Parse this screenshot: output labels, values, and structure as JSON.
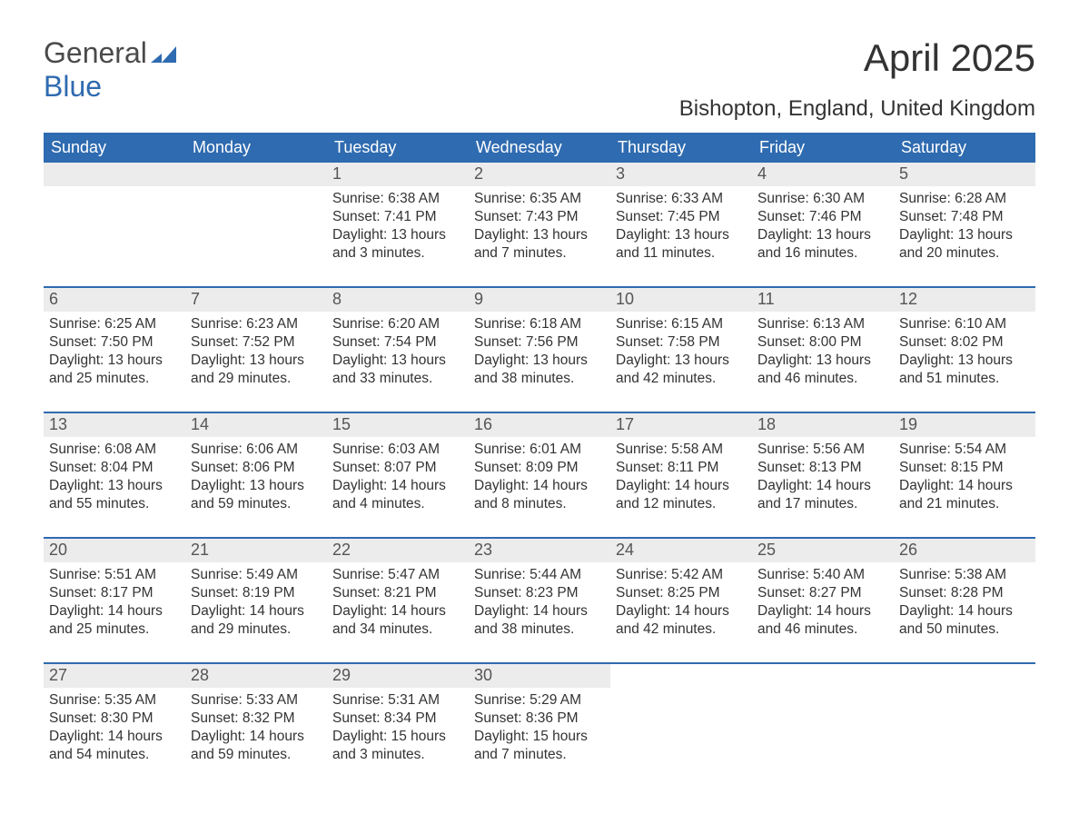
{
  "logo": {
    "text1": "General",
    "text2": "Blue",
    "mark_color": "#2f6bb0"
  },
  "title": "April 2025",
  "location": "Bishopton, England, United Kingdom",
  "colors": {
    "header_bg": "#2f6bb0",
    "header_fg": "#ffffff",
    "daynum_bg": "#ececec",
    "week_border": "#2f6bb0",
    "text": "#333333"
  },
  "days_of_week": [
    "Sunday",
    "Monday",
    "Tuesday",
    "Wednesday",
    "Thursday",
    "Friday",
    "Saturday"
  ],
  "weeks": [
    [
      {
        "n": "",
        "lines": []
      },
      {
        "n": "",
        "lines": []
      },
      {
        "n": "1",
        "lines": [
          "Sunrise: 6:38 AM",
          "Sunset: 7:41 PM",
          "Daylight: 13 hours",
          "and 3 minutes."
        ]
      },
      {
        "n": "2",
        "lines": [
          "Sunrise: 6:35 AM",
          "Sunset: 7:43 PM",
          "Daylight: 13 hours",
          "and 7 minutes."
        ]
      },
      {
        "n": "3",
        "lines": [
          "Sunrise: 6:33 AM",
          "Sunset: 7:45 PM",
          "Daylight: 13 hours",
          "and 11 minutes."
        ]
      },
      {
        "n": "4",
        "lines": [
          "Sunrise: 6:30 AM",
          "Sunset: 7:46 PM",
          "Daylight: 13 hours",
          "and 16 minutes."
        ]
      },
      {
        "n": "5",
        "lines": [
          "Sunrise: 6:28 AM",
          "Sunset: 7:48 PM",
          "Daylight: 13 hours",
          "and 20 minutes."
        ]
      }
    ],
    [
      {
        "n": "6",
        "lines": [
          "Sunrise: 6:25 AM",
          "Sunset: 7:50 PM",
          "Daylight: 13 hours",
          "and 25 minutes."
        ]
      },
      {
        "n": "7",
        "lines": [
          "Sunrise: 6:23 AM",
          "Sunset: 7:52 PM",
          "Daylight: 13 hours",
          "and 29 minutes."
        ]
      },
      {
        "n": "8",
        "lines": [
          "Sunrise: 6:20 AM",
          "Sunset: 7:54 PM",
          "Daylight: 13 hours",
          "and 33 minutes."
        ]
      },
      {
        "n": "9",
        "lines": [
          "Sunrise: 6:18 AM",
          "Sunset: 7:56 PM",
          "Daylight: 13 hours",
          "and 38 minutes."
        ]
      },
      {
        "n": "10",
        "lines": [
          "Sunrise: 6:15 AM",
          "Sunset: 7:58 PM",
          "Daylight: 13 hours",
          "and 42 minutes."
        ]
      },
      {
        "n": "11",
        "lines": [
          "Sunrise: 6:13 AM",
          "Sunset: 8:00 PM",
          "Daylight: 13 hours",
          "and 46 minutes."
        ]
      },
      {
        "n": "12",
        "lines": [
          "Sunrise: 6:10 AM",
          "Sunset: 8:02 PM",
          "Daylight: 13 hours",
          "and 51 minutes."
        ]
      }
    ],
    [
      {
        "n": "13",
        "lines": [
          "Sunrise: 6:08 AM",
          "Sunset: 8:04 PM",
          "Daylight: 13 hours",
          "and 55 minutes."
        ]
      },
      {
        "n": "14",
        "lines": [
          "Sunrise: 6:06 AM",
          "Sunset: 8:06 PM",
          "Daylight: 13 hours",
          "and 59 minutes."
        ]
      },
      {
        "n": "15",
        "lines": [
          "Sunrise: 6:03 AM",
          "Sunset: 8:07 PM",
          "Daylight: 14 hours",
          "and 4 minutes."
        ]
      },
      {
        "n": "16",
        "lines": [
          "Sunrise: 6:01 AM",
          "Sunset: 8:09 PM",
          "Daylight: 14 hours",
          "and 8 minutes."
        ]
      },
      {
        "n": "17",
        "lines": [
          "Sunrise: 5:58 AM",
          "Sunset: 8:11 PM",
          "Daylight: 14 hours",
          "and 12 minutes."
        ]
      },
      {
        "n": "18",
        "lines": [
          "Sunrise: 5:56 AM",
          "Sunset: 8:13 PM",
          "Daylight: 14 hours",
          "and 17 minutes."
        ]
      },
      {
        "n": "19",
        "lines": [
          "Sunrise: 5:54 AM",
          "Sunset: 8:15 PM",
          "Daylight: 14 hours",
          "and 21 minutes."
        ]
      }
    ],
    [
      {
        "n": "20",
        "lines": [
          "Sunrise: 5:51 AM",
          "Sunset: 8:17 PM",
          "Daylight: 14 hours",
          "and 25 minutes."
        ]
      },
      {
        "n": "21",
        "lines": [
          "Sunrise: 5:49 AM",
          "Sunset: 8:19 PM",
          "Daylight: 14 hours",
          "and 29 minutes."
        ]
      },
      {
        "n": "22",
        "lines": [
          "Sunrise: 5:47 AM",
          "Sunset: 8:21 PM",
          "Daylight: 14 hours",
          "and 34 minutes."
        ]
      },
      {
        "n": "23",
        "lines": [
          "Sunrise: 5:44 AM",
          "Sunset: 8:23 PM",
          "Daylight: 14 hours",
          "and 38 minutes."
        ]
      },
      {
        "n": "24",
        "lines": [
          "Sunrise: 5:42 AM",
          "Sunset: 8:25 PM",
          "Daylight: 14 hours",
          "and 42 minutes."
        ]
      },
      {
        "n": "25",
        "lines": [
          "Sunrise: 5:40 AM",
          "Sunset: 8:27 PM",
          "Daylight: 14 hours",
          "and 46 minutes."
        ]
      },
      {
        "n": "26",
        "lines": [
          "Sunrise: 5:38 AM",
          "Sunset: 8:28 PM",
          "Daylight: 14 hours",
          "and 50 minutes."
        ]
      }
    ],
    [
      {
        "n": "27",
        "lines": [
          "Sunrise: 5:35 AM",
          "Sunset: 8:30 PM",
          "Daylight: 14 hours",
          "and 54 minutes."
        ]
      },
      {
        "n": "28",
        "lines": [
          "Sunrise: 5:33 AM",
          "Sunset: 8:32 PM",
          "Daylight: 14 hours",
          "and 59 minutes."
        ]
      },
      {
        "n": "29",
        "lines": [
          "Sunrise: 5:31 AM",
          "Sunset: 8:34 PM",
          "Daylight: 15 hours",
          "and 3 minutes."
        ]
      },
      {
        "n": "30",
        "lines": [
          "Sunrise: 5:29 AM",
          "Sunset: 8:36 PM",
          "Daylight: 15 hours",
          "and 7 minutes."
        ]
      },
      {
        "n": "",
        "lines": []
      },
      {
        "n": "",
        "lines": []
      },
      {
        "n": "",
        "lines": []
      }
    ]
  ]
}
